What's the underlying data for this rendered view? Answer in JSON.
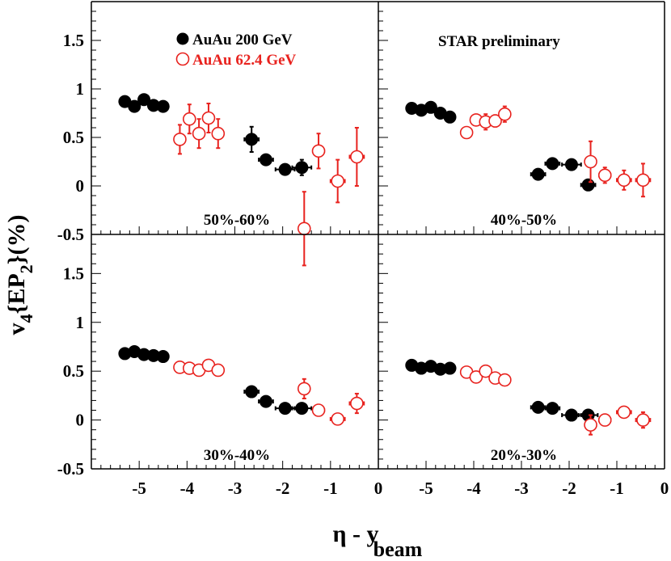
{
  "figure": {
    "ylabel_main": "v",
    "ylabel_sub4": "4",
    "ylabel_ep": "{EP",
    "ylabel_sub2": "2",
    "ylabel_tail": "}(%)",
    "xlabel_main": "η - y",
    "xlabel_sub": "beam",
    "x_ticks": [
      "-5",
      "-4",
      "-3",
      "-2",
      "-1",
      "0"
    ],
    "y_ticks": [
      "-0.5",
      "0",
      "0.5",
      "1",
      "1.5"
    ],
    "legend": [
      {
        "label": "AuAu 200 GeV",
        "marker": "filled-circle"
      },
      {
        "label": "AuAu 62.4 GeV",
        "marker": "open-circle"
      }
    ],
    "annotation": "STAR preliminary",
    "colors": {
      "series_200": "#000000",
      "series_62": "#e8221e",
      "axis": "#000000"
    }
  },
  "chart_data": [
    {
      "type": "scatter",
      "panel": "top-left",
      "title": "50%-60%",
      "xlim": [
        -6,
        0
      ],
      "ylim": [
        -0.5,
        1.9
      ],
      "series": [
        {
          "name": "AuAu 200 GeV",
          "x": [
            -5.3,
            -5.1,
            -4.9,
            -4.7,
            -4.5,
            -2.65,
            -2.35,
            -1.95,
            -1.6
          ],
          "y": [
            0.87,
            0.82,
            0.89,
            0.83,
            0.82,
            0.48,
            0.27,
            0.17,
            0.19
          ],
          "yerr": [
            0,
            0,
            0,
            0,
            0,
            0.13,
            0.03,
            0.03,
            0.08
          ],
          "xerr": [
            0,
            0,
            0,
            0,
            0,
            0.15,
            0.15,
            0.2,
            0.2
          ]
        },
        {
          "name": "AuAu 62.4 GeV",
          "x": [
            -4.15,
            -3.95,
            -3.75,
            -3.55,
            -3.35,
            -1.55,
            -1.25,
            -0.85,
            -0.45
          ],
          "y": [
            0.48,
            0.69,
            0.54,
            0.7,
            0.54,
            -0.44,
            0.36,
            0.05,
            0.3
          ],
          "yerr": [
            0.15,
            0.15,
            0.15,
            0.15,
            0.15,
            0.38,
            0.18,
            0.22,
            0.3
          ],
          "xerr": [
            0,
            0,
            0,
            0,
            0,
            0.1,
            0.12,
            0.15,
            0.15
          ]
        }
      ]
    },
    {
      "type": "scatter",
      "panel": "top-right",
      "title": "40%-50%",
      "xlim": [
        -6,
        0
      ],
      "ylim": [
        -0.5,
        1.9
      ],
      "series": [
        {
          "name": "AuAu 200 GeV",
          "x": [
            -5.3,
            -5.1,
            -4.9,
            -4.7,
            -4.5,
            -2.65,
            -2.35,
            -1.95,
            -1.6
          ],
          "y": [
            0.8,
            0.78,
            0.81,
            0.75,
            0.71,
            0.12,
            0.23,
            0.22,
            0.01
          ],
          "yerr": [
            0,
            0,
            0,
            0,
            0,
            0.05,
            0.02,
            0.02,
            0.02
          ],
          "xerr": [
            0,
            0,
            0,
            0,
            0,
            0.15,
            0.15,
            0.2,
            0.15
          ]
        },
        {
          "name": "AuAu 62.4 GeV",
          "x": [
            -4.15,
            -3.95,
            -3.75,
            -3.55,
            -3.35,
            -1.55,
            -1.25,
            -0.85,
            -0.45
          ],
          "y": [
            0.55,
            0.68,
            0.66,
            0.67,
            0.74,
            0.25,
            0.11,
            0.06,
            0.06
          ],
          "yerr": [
            0.05,
            0.05,
            0.08,
            0.06,
            0.08,
            0.21,
            0.08,
            0.1,
            0.17
          ],
          "xerr": [
            0,
            0,
            0,
            0,
            0,
            0.1,
            0.12,
            0.15,
            0.15
          ]
        }
      ]
    },
    {
      "type": "scatter",
      "panel": "bottom-left",
      "title": "30%-40%",
      "xlim": [
        -6,
        0
      ],
      "ylim": [
        -0.5,
        1.9
      ],
      "series": [
        {
          "name": "AuAu 200 GeV",
          "x": [
            -5.3,
            -5.1,
            -4.9,
            -4.7,
            -4.5,
            -2.65,
            -2.35,
            -1.95,
            -1.6
          ],
          "y": [
            0.68,
            0.7,
            0.67,
            0.66,
            0.65,
            0.29,
            0.19,
            0.12,
            0.12
          ],
          "yerr": [
            0,
            0,
            0,
            0,
            0,
            0.03,
            0.02,
            0.02,
            0.02
          ],
          "xerr": [
            0,
            0,
            0,
            0,
            0,
            0.15,
            0.15,
            0.2,
            0.2
          ]
        },
        {
          "name": "AuAu 62.4 GeV",
          "x": [
            -4.15,
            -3.95,
            -3.75,
            -3.55,
            -3.35,
            -1.55,
            -1.25,
            -0.85,
            -0.45
          ],
          "y": [
            0.54,
            0.53,
            0.51,
            0.56,
            0.51,
            0.32,
            0.1,
            0.01,
            0.17
          ],
          "yerr": [
            0.03,
            0.03,
            0.03,
            0.03,
            0.03,
            0.1,
            0.04,
            0.04,
            0.1
          ],
          "xerr": [
            0,
            0,
            0,
            0,
            0,
            0.1,
            0.12,
            0.15,
            0.15
          ]
        }
      ]
    },
    {
      "type": "scatter",
      "panel": "bottom-right",
      "title": "20%-30%",
      "xlim": [
        -6,
        0
      ],
      "ylim": [
        -0.5,
        1.9
      ],
      "series": [
        {
          "name": "AuAu 200 GeV",
          "x": [
            -5.3,
            -5.1,
            -4.9,
            -4.7,
            -4.5,
            -2.65,
            -2.35,
            -1.95,
            -1.6
          ],
          "y": [
            0.56,
            0.53,
            0.55,
            0.52,
            0.53,
            0.13,
            0.12,
            0.05,
            0.05
          ],
          "yerr": [
            0,
            0,
            0,
            0,
            0,
            0.02,
            0.02,
            0.02,
            0.02
          ],
          "xerr": [
            0,
            0,
            0,
            0,
            0,
            0.15,
            0.15,
            0.2,
            0.2
          ]
        },
        {
          "name": "AuAu 62.4 GeV",
          "x": [
            -4.15,
            -3.95,
            -3.75,
            -3.55,
            -3.35,
            -1.55,
            -1.25,
            -0.85,
            -0.45
          ],
          "y": [
            0.49,
            0.44,
            0.5,
            0.43,
            0.41,
            -0.05,
            0.0,
            0.08,
            0.0
          ],
          "yerr": [
            0.03,
            0.03,
            0.03,
            0.03,
            0.03,
            0.1,
            0.05,
            0.05,
            0.08
          ],
          "xerr": [
            0,
            0,
            0,
            0,
            0,
            0.1,
            0.12,
            0.15,
            0.15
          ]
        }
      ]
    }
  ]
}
